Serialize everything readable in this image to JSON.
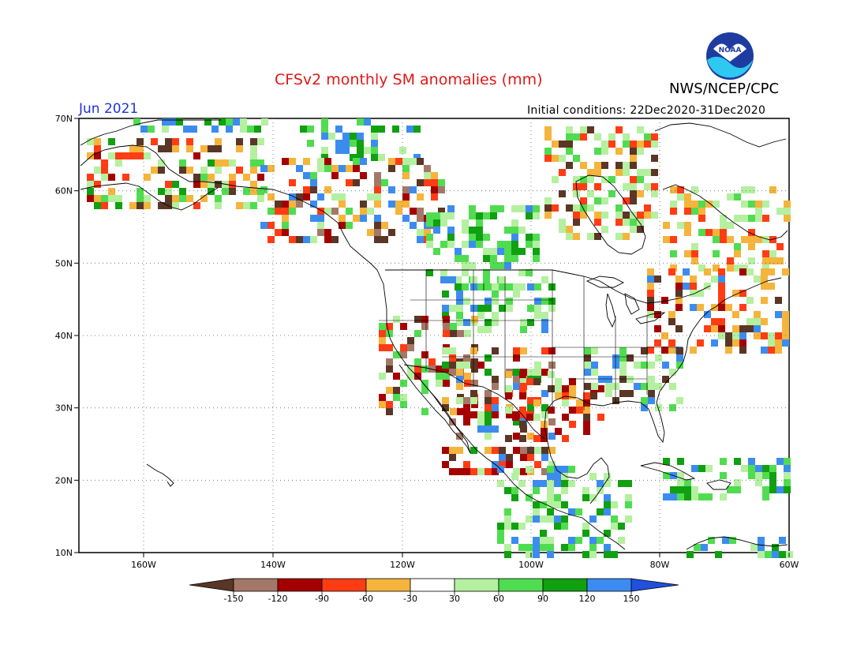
{
  "title": "CFSv2 monthly SM anomalies (mm)",
  "agency": "NWS/NCEP/CPC",
  "logo_text": "NOAA",
  "valid_month": "Jun 2021",
  "initial_conditions": "Initial conditions: 22Dec2020-31Dec2020",
  "lat_labels": [
    "70N",
    "60N",
    "50N",
    "40N",
    "30N",
    "20N",
    "10N"
  ],
  "lon_labels": [
    "160W",
    "140W",
    "120W",
    "100W",
    "80W",
    "60W"
  ],
  "legend": {
    "labels": [
      "-150",
      "-120",
      "-90",
      "-60",
      "-30",
      "30",
      "60",
      "90",
      "120",
      "150"
    ],
    "colors": [
      "#5a3626",
      "#a47868",
      "#a50000",
      "#ff3c14",
      "#f5b43c",
      "#ffffff",
      "#b4f0a0",
      "#50dc50",
      "#10a010",
      "#3c8cf0",
      "#2050dc"
    ]
  },
  "colors": {
    "title": "#e01818",
    "date": "#2030e0",
    "land_line": "#000000",
    "grid": "#888888"
  }
}
